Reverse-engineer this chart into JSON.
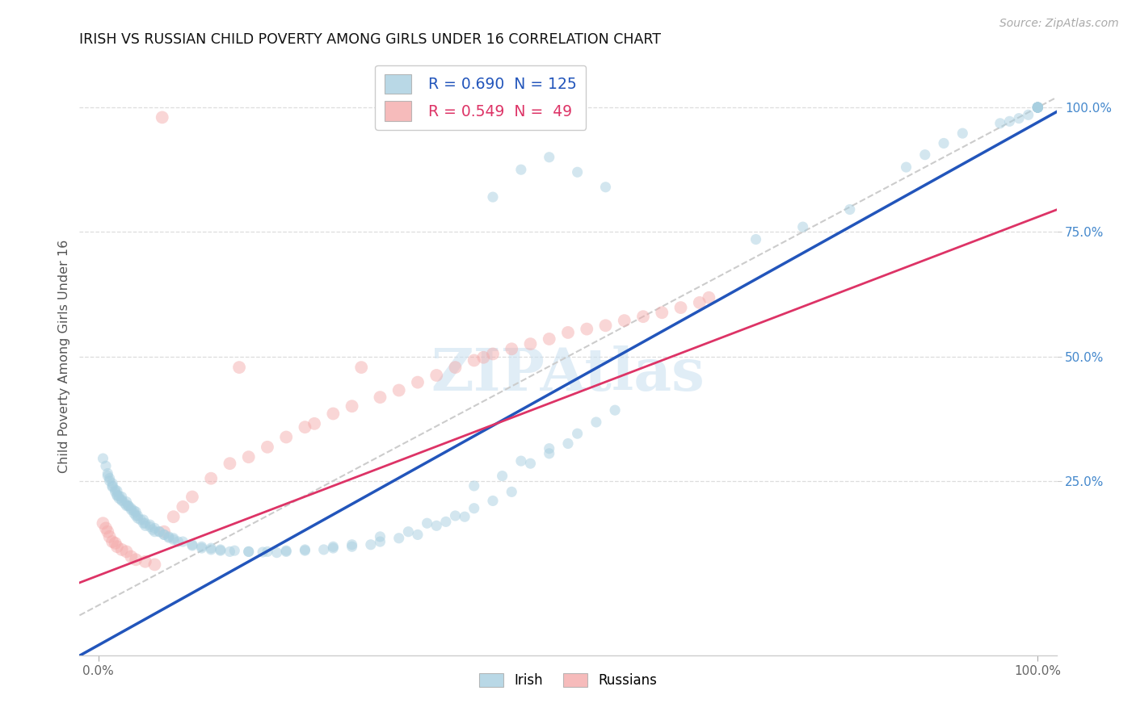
{
  "title": "IRISH VS RUSSIAN CHILD POVERTY AMONG GIRLS UNDER 16 CORRELATION CHART",
  "source": "Source: ZipAtlas.com",
  "ylabel": "Child Poverty Among Girls Under 16",
  "watermark": "ZIPAtlas",
  "legend_irish_R": 0.69,
  "legend_irish_N": 125,
  "legend_russian_R": 0.549,
  "legend_russian_N": 49,
  "legend_irish_label": "Irish",
  "legend_russian_label": "Russians",
  "irish_color": "#a8cfe0",
  "russian_color": "#f4aaaa",
  "irish_line_color": "#2255bb",
  "russian_line_color": "#dd3366",
  "dashed_line_color": "#cccccc",
  "background_color": "#ffffff",
  "grid_color": "#dddddd",
  "title_color": "#111111",
  "axis_label_color": "#555555",
  "right_tick_color": "#4488cc",
  "ytick_labels": [
    "25.0%",
    "50.0%",
    "75.0%",
    "100.0%"
  ],
  "ytick_values": [
    0.25,
    0.5,
    0.75,
    1.0
  ],
  "xtick_left": "0.0%",
  "xtick_right": "100.0%",
  "irish_dot_size": 90,
  "russian_dot_size": 130,
  "irish_alpha": 0.5,
  "russian_alpha": 0.48,
  "irish_line_intercept": -0.08,
  "irish_line_slope": 1.05,
  "russian_line_intercept": 0.06,
  "russian_line_slope": 0.72
}
